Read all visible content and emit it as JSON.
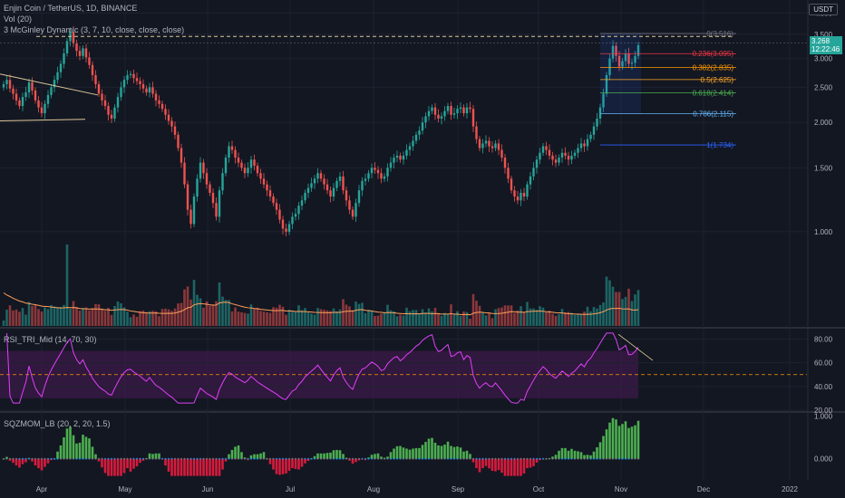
{
  "header": {
    "symbol_line": "Enjin Coin / TetherUS, 1D, BINANCE",
    "volume_line": "Vol (20)",
    "mcginley_line": "3 McGinley Dynamic (3, 7, 10, close, close, close)",
    "currency": "USDT"
  },
  "rsi_panel": {
    "label": "RSI_TRI_Mid (14, 70, 30)"
  },
  "sqz_panel": {
    "label": "SQZMOM_LB (20, 2, 20, 1.5)"
  },
  "last_price": {
    "value": "3.268",
    "countdown": "12:22:46"
  },
  "colors": {
    "bg": "#131722",
    "up": "#26a69a",
    "down": "#ef5350",
    "grid": "#1e2230",
    "rsi_line": "#e040fb",
    "rsi_band": "#4a1a55",
    "mcginley": "#ff9f5a",
    "sqz_pos": "#4caf50",
    "sqz_neg": "#d81b3c"
  },
  "chart_data": [
    {
      "type": "candlestick",
      "title": "Enjin Coin / TetherUS, 1D, BINANCE",
      "x_ticks": [
        "Apr",
        "May",
        "Jun",
        "Jul",
        "Aug",
        "Sep",
        "Oct",
        "Nov",
        "Dec",
        "2022"
      ],
      "y_ticks": [
        "4.000",
        "3.500",
        "3.000",
        "2.500",
        "2.000",
        "1.500",
        "1.000"
      ],
      "ylim": [
        0.55,
        4.25
      ],
      "scale": "log",
      "closes": [
        2.55,
        2.62,
        2.48,
        2.4,
        2.3,
        2.22,
        2.35,
        2.42,
        2.58,
        2.45,
        2.3,
        2.2,
        2.12,
        2.25,
        2.38,
        2.5,
        2.62,
        2.75,
        2.9,
        3.1,
        3.35,
        3.55,
        3.3,
        3.15,
        3.05,
        3.2,
        3.02,
        2.88,
        2.7,
        2.55,
        2.4,
        2.3,
        2.22,
        2.1,
        2.05,
        2.2,
        2.35,
        2.5,
        2.62,
        2.7,
        2.72,
        2.65,
        2.6,
        2.55,
        2.48,
        2.42,
        2.5,
        2.4,
        2.3,
        2.25,
        2.18,
        2.1,
        2.02,
        1.95,
        1.85,
        1.7,
        1.55,
        1.35,
        1.15,
        1.05,
        1.25,
        1.4,
        1.55,
        1.45,
        1.35,
        1.28,
        1.2,
        1.1,
        1.3,
        1.45,
        1.6,
        1.72,
        1.68,
        1.6,
        1.55,
        1.5,
        1.45,
        1.5,
        1.58,
        1.52,
        1.45,
        1.4,
        1.35,
        1.3,
        1.25,
        1.2,
        1.15,
        1.08,
        1.02,
        1.0,
        1.05,
        1.1,
        1.12,
        1.18,
        1.22,
        1.28,
        1.32,
        1.36,
        1.4,
        1.45,
        1.4,
        1.35,
        1.3,
        1.25,
        1.32,
        1.38,
        1.42,
        1.3,
        1.22,
        1.15,
        1.1,
        1.2,
        1.3,
        1.38,
        1.4,
        1.45,
        1.5,
        1.48,
        1.45,
        1.4,
        1.42,
        1.5,
        1.55,
        1.6,
        1.62,
        1.58,
        1.62,
        1.68,
        1.72,
        1.78,
        1.85,
        1.9,
        2.0,
        2.08,
        2.15,
        2.2,
        2.1,
        2.05,
        2.08,
        2.15,
        2.22,
        2.1,
        2.12,
        2.18,
        2.2,
        2.12,
        2.2,
        2.18,
        1.95,
        1.8,
        1.7,
        1.75,
        1.78,
        1.72,
        1.7,
        1.75,
        1.68,
        1.6,
        1.5,
        1.4,
        1.3,
        1.25,
        1.22,
        1.28,
        1.25,
        1.35,
        1.42,
        1.5,
        1.58,
        1.65,
        1.72,
        1.68,
        1.62,
        1.58,
        1.55,
        1.6,
        1.65,
        1.62,
        1.58,
        1.62,
        1.65,
        1.7,
        1.75,
        1.72,
        1.8,
        1.85,
        1.95,
        2.05,
        2.2,
        2.4,
        2.7,
        3.0,
        3.25,
        3.05,
        2.85,
        2.95,
        3.1,
        2.9,
        2.92,
        3.05,
        3.268
      ],
      "volume_peak_index": 20,
      "fib_levels": [
        {
          "label": "0(3.516)",
          "value": 3.516,
          "color": "#787b86"
        },
        {
          "label": "0.236(3.095)",
          "value": 3.095,
          "color": "#f23645"
        },
        {
          "label": "0.382(2.835)",
          "value": 2.835,
          "color": "#ff9800"
        },
        {
          "label": "0.5(2.625)",
          "value": 2.625,
          "color": "#ffa726"
        },
        {
          "label": "0.618(2.414)",
          "value": 2.414,
          "color": "#4caf50"
        },
        {
          "label": "0.786(2.115)",
          "value": 2.115,
          "color": "#64b5f6"
        },
        {
          "label": "1(1.734)",
          "value": 1.734,
          "color": "#2962ff"
        }
      ],
      "resistance_level": 3.45
    },
    {
      "type": "line",
      "title": "RSI_TRI_Mid (14, 70, 30)",
      "y_ticks": [
        "80.00",
        "60.00",
        "40.00",
        "20.00"
      ],
      "ylim": [
        20,
        88
      ],
      "band": [
        30,
        70
      ],
      "midline": 50
    },
    {
      "type": "bar",
      "title": "SQZMOM_LB (20, 2, 20, 1.5)",
      "y_ticks": [
        "1.000",
        "0.000"
      ],
      "ylim": [
        -0.45,
        1.05
      ]
    }
  ]
}
